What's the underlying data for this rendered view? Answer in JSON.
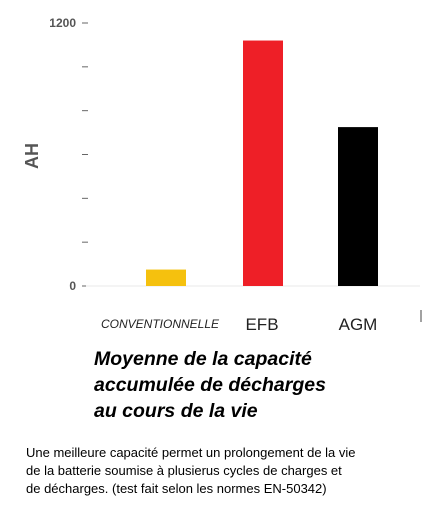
{
  "chart_data": {
    "type": "bar",
    "categories": [
      "CONVENTIONNELLE",
      "EFB",
      "AGM"
    ],
    "values": [
      75,
      1120,
      725
    ],
    "colors": [
      "#f5c10e",
      "#ee1f27",
      "#000000"
    ],
    "ylabel": "AH",
    "xlabel": "",
    "ylim": [
      0,
      1200
    ],
    "yticks": [
      0,
      1200
    ],
    "minor_tick_step": 200,
    "grid": false
  },
  "caption": {
    "lines": [
      "Moyenne de la capacité",
      "accumulée de décharges",
      "au cours de la vie"
    ]
  },
  "note": {
    "lines": [
      "Une meilleure capacité permet un prolongement de la vie",
      "de la batterie soumise à plusierus cycles de charges et",
      "de décharges.  (test fait selon les normes EN-50342)"
    ]
  }
}
